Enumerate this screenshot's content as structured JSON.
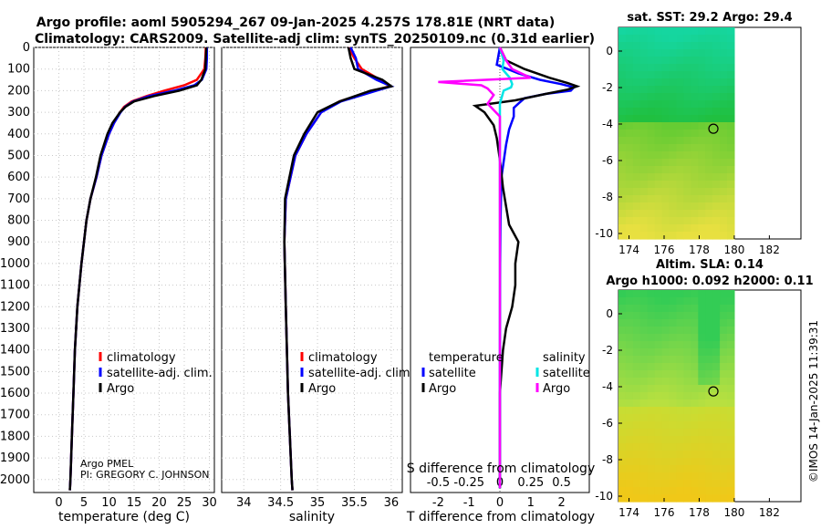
{
  "header": {
    "title_line1": "Argo profile: aoml 5905294_267 09-Jan-2025 4.257S 178.81E (NRT data)",
    "title_line2": "Climatology: CARS2009. Satellite-adj clim: synTS_20250109.nc (0.31d earlier)"
  },
  "credit": {
    "line1": "Argo PMEL",
    "line2": "PI: GREGORY C. JOHNSON"
  },
  "timestamp": "©IMOS 14-Jan-2025 11:39:31",
  "colors": {
    "climatology": "#ff0000",
    "satellite": "#0000ff",
    "argo": "#000000",
    "sat_salinity": "#00e5e5",
    "argo_salinity": "#ff00ff"
  },
  "legends": {
    "temp": [
      "climatology",
      "satellite-adj. clim.",
      "Argo"
    ],
    "sal": [
      "climatology",
      "satellite-adj. clim.",
      "Argo"
    ],
    "diff": {
      "temp_header": "temperature",
      "sal_header": "salinity",
      "temp_items": [
        "satellite",
        "Argo"
      ],
      "sal_items": [
        "satellite",
        "Argo"
      ]
    }
  },
  "maps": {
    "sst": {
      "title": "sat. SST: 29.2 Argo: 29.4",
      "xticks": [
        "174",
        "176",
        "178",
        "180",
        "182"
      ],
      "yticks": [
        "0",
        "-2",
        "-4",
        "-6",
        "-8",
        "-10"
      ]
    },
    "sla": {
      "title_line1": "Altim. SLA: 0.14",
      "title_line2": "Argo h1000: 0.092 h2000: 0.11",
      "xticks": [
        "174",
        "176",
        "178",
        "180",
        "182"
      ],
      "yticks": [
        "0",
        "-2",
        "-4",
        "-6",
        "-8",
        "-10"
      ]
    },
    "argo_position": {
      "lon": 178.81,
      "lat": -4.257
    }
  },
  "chart_data": [
    {
      "type": "line",
      "name": "temperature-profile",
      "xlabel": "temperature (deg C)",
      "ylabel": "depth",
      "xlim": [
        -5,
        31
      ],
      "ylim": [
        2060,
        0
      ],
      "xticks": [
        0,
        5,
        10,
        15,
        20,
        25,
        30
      ],
      "yticks": [
        0,
        100,
        200,
        300,
        400,
        500,
        600,
        700,
        800,
        900,
        1000,
        1100,
        1200,
        1300,
        1400,
        1500,
        1600,
        1700,
        1800,
        1900,
        2000
      ],
      "series": [
        {
          "name": "climatology",
          "color": "#ff0000",
          "depth": [
            0,
            50,
            100,
            150,
            175,
            200,
            225,
            250,
            275,
            300,
            350,
            400,
            500,
            600,
            700,
            800,
            1000,
            1200,
            1400,
            1600,
            1800,
            2000,
            2050
          ],
          "values": [
            29.3,
            29.2,
            29.0,
            27.5,
            25.0,
            21.0,
            17.5,
            14.5,
            13.0,
            12.2,
            11.0,
            10.0,
            8.5,
            7.5,
            6.3,
            5.5,
            4.5,
            3.7,
            3.2,
            2.9,
            2.6,
            2.3,
            2.2
          ]
        },
        {
          "name": "satellite-adj. clim.",
          "color": "#0000ff",
          "depth": [
            0,
            50,
            100,
            150,
            175,
            200,
            225,
            250,
            275,
            300,
            350,
            400,
            500,
            600,
            700,
            800,
            1000,
            1200,
            1400,
            1600,
            1800,
            2000,
            2050
          ],
          "values": [
            29.5,
            29.5,
            29.4,
            28.5,
            27.0,
            23.0,
            18.0,
            14.8,
            13.2,
            12.3,
            11.0,
            10.0,
            8.5,
            7.5,
            6.3,
            5.5,
            4.5,
            3.7,
            3.2,
            2.9,
            2.6,
            2.3,
            2.2
          ]
        },
        {
          "name": "Argo",
          "color": "#000000",
          "depth": [
            0,
            50,
            100,
            150,
            175,
            200,
            225,
            250,
            275,
            300,
            350,
            400,
            500,
            600,
            700,
            800,
            1000,
            1200,
            1400,
            1600,
            1800,
            2000,
            2050
          ],
          "values": [
            29.4,
            29.3,
            29.2,
            28.4,
            27.5,
            24.0,
            19.0,
            15.0,
            13.3,
            12.2,
            10.7,
            9.7,
            8.3,
            7.4,
            6.3,
            5.5,
            4.5,
            3.7,
            3.2,
            2.9,
            2.6,
            2.3,
            2.2
          ]
        }
      ]
    },
    {
      "type": "line",
      "name": "salinity-profile",
      "xlabel": "salinity",
      "xlim": [
        33.7,
        36.15
      ],
      "ylim": [
        2060,
        0
      ],
      "xticks": [
        34,
        34.5,
        35,
        35.5,
        36
      ],
      "series": [
        {
          "name": "climatology",
          "color": "#ff0000",
          "depth": [
            0,
            50,
            100,
            150,
            180,
            200,
            250,
            300,
            400,
            500,
            700,
            900,
            1200,
            1600,
            2000,
            2050
          ],
          "values": [
            35.42,
            35.5,
            35.6,
            35.85,
            35.98,
            35.75,
            35.3,
            35.05,
            34.85,
            34.7,
            34.57,
            34.55,
            34.57,
            34.6,
            34.65,
            34.66
          ]
        },
        {
          "name": "satellite-adj. clim.",
          "color": "#0000ff",
          "depth": [
            0,
            50,
            100,
            150,
            180,
            200,
            250,
            300,
            400,
            500,
            700,
            900,
            1200,
            1600,
            2000,
            2050
          ],
          "values": [
            35.45,
            35.52,
            35.55,
            35.8,
            36.0,
            35.8,
            35.32,
            35.05,
            34.85,
            34.7,
            34.57,
            34.55,
            34.57,
            34.6,
            34.65,
            34.66
          ]
        },
        {
          "name": "Argo",
          "color": "#000000",
          "depth": [
            0,
            50,
            100,
            150,
            180,
            200,
            250,
            300,
            400,
            500,
            700,
            900,
            1200,
            1600,
            2000,
            2050
          ],
          "values": [
            35.42,
            35.45,
            35.5,
            35.88,
            36.0,
            35.72,
            35.3,
            35.0,
            34.82,
            34.68,
            34.56,
            34.55,
            34.57,
            34.6,
            34.65,
            34.66
          ]
        }
      ]
    },
    {
      "type": "line",
      "name": "difference-from-climatology",
      "xlabel": "T difference from climatology",
      "x2label": "S difference from climatology",
      "xlim": [
        -2.9,
        2.9
      ],
      "ylim": [
        2060,
        0
      ],
      "xticks": [
        -2,
        -1,
        0,
        1,
        2
      ],
      "x2ticks": [
        "-0.5",
        "-0.25",
        "0",
        "0.25",
        "0.5"
      ],
      "series": [
        {
          "name": "temperature satellite",
          "color": "#0000ff",
          "depth": [
            0,
            80,
            120,
            150,
            170,
            185,
            200,
            215,
            235,
            260,
            280,
            320,
            380,
            450,
            600,
            800,
            1000,
            1500,
            2000,
            2040
          ],
          "values": [
            0,
            -0.1,
            0.6,
            1.3,
            2.0,
            2.4,
            2.3,
            1.5,
            0.8,
            0.6,
            0.45,
            0.45,
            0.3,
            0.2,
            0.05,
            0.02,
            0.01,
            0,
            0,
            0
          ]
        },
        {
          "name": "temperature Argo",
          "color": "#000000",
          "depth": [
            0,
            60,
            100,
            140,
            165,
            180,
            195,
            215,
            245,
            270,
            300,
            360,
            420,
            520,
            650,
            820,
            900,
            1000,
            1100,
            1200,
            1300,
            1400,
            1500,
            1600,
            1800,
            2000,
            2040
          ],
          "values": [
            0,
            0.2,
            0.8,
            1.6,
            2.2,
            2.5,
            2.2,
            1.5,
            0.5,
            -0.8,
            -0.5,
            -0.2,
            -0.1,
            0,
            0.1,
            0.3,
            0.6,
            0.5,
            0.5,
            0.4,
            0.2,
            0.1,
            0.05,
            0,
            0,
            0,
            0
          ]
        },
        {
          "name": "salinity satellite",
          "color": "#00e5e5",
          "depth": [
            0,
            60,
            100,
            140,
            170,
            185,
            200,
            260,
            350,
            500,
            800,
            1200,
            1600,
            2000,
            2040
          ],
          "values": [
            0,
            0.03,
            0.02,
            0.08,
            0.1,
            0.09,
            0.03,
            0,
            0,
            0,
            0,
            0,
            0,
            0,
            0
          ]
        },
        {
          "name": "salinity Argo",
          "color": "#ff00ff",
          "depth": [
            0,
            60,
            100,
            140,
            160,
            175,
            190,
            220,
            260,
            320,
            420,
            600,
            800,
            1200,
            1600,
            2000,
            2040
          ],
          "values": [
            0,
            0.05,
            0.1,
            0.25,
            -0.5,
            -0.15,
            -0.1,
            -0.05,
            -0.1,
            0,
            0,
            0,
            0,
            0,
            0,
            0,
            0
          ]
        }
      ]
    }
  ]
}
